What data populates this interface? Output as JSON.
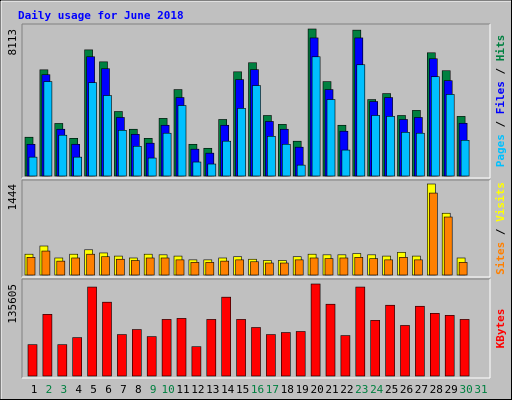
{
  "chart_data": [
    {
      "type": "bar",
      "title": "Daily usage for June 2018",
      "categories": [
        1,
        2,
        3,
        4,
        5,
        6,
        7,
        8,
        9,
        10,
        11,
        12,
        13,
        14,
        15,
        16,
        17,
        18,
        19,
        20,
        21,
        22,
        23,
        24,
        25,
        26,
        27,
        28,
        29,
        30,
        31
      ],
      "series": [
        {
          "name": "Hits",
          "color": "#008040",
          "values": [
            2140,
            5860,
            2900,
            2080,
            6960,
            6300,
            3560,
            2580,
            2080,
            3180,
            4770,
            1750,
            1530,
            3120,
            5750,
            6250,
            3340,
            2850,
            1920,
            8113,
            5210,
            2800,
            8050,
            4220,
            4550,
            3340,
            3620,
            6800,
            5810,
            3290,
            null
          ]
        },
        {
          "name": "Files",
          "color": "#0000ff",
          "values": [
            1750,
            5590,
            2580,
            1750,
            6580,
            5920,
            3230,
            2300,
            1810,
            2800,
            4330,
            1480,
            1260,
            2800,
            5320,
            5870,
            3010,
            2580,
            1590,
            7620,
            4770,
            2470,
            7620,
            4110,
            4330,
            3120,
            3230,
            6470,
            5260,
            2910,
            null
          ]
        },
        {
          "name": "Pages",
          "color": "#00c0ff",
          "values": [
            1040,
            5210,
            2250,
            1040,
            5150,
            4440,
            2520,
            1640,
            990,
            2360,
            3890,
            770,
            660,
            1920,
            3730,
            4990,
            2190,
            1750,
            600,
            6580,
            4220,
            1430,
            6140,
            3340,
            3290,
            2410,
            2360,
            5480,
            4500,
            1970,
            null
          ]
        }
      ],
      "ylim": [
        0,
        8113
      ],
      "yticks": [
        8113
      ],
      "legend_separator": " / "
    },
    {
      "type": "bar",
      "categories": [
        1,
        2,
        3,
        4,
        5,
        6,
        7,
        8,
        9,
        10,
        11,
        12,
        13,
        14,
        15,
        16,
        17,
        18,
        19,
        20,
        21,
        22,
        23,
        24,
        25,
        26,
        27,
        28,
        29,
        30,
        31
      ],
      "series": [
        {
          "name": "Visits",
          "color": "#ffff00",
          "values": [
            330,
            460,
            270,
            330,
            400,
            350,
            300,
            270,
            330,
            320,
            300,
            240,
            240,
            270,
            290,
            250,
            230,
            230,
            290,
            330,
            320,
            320,
            340,
            320,
            300,
            360,
            300,
            1444,
            980,
            270,
            null
          ]
        },
        {
          "name": "Sites",
          "color": "#ff8000",
          "values": [
            280,
            380,
            220,
            270,
            330,
            290,
            250,
            230,
            270,
            270,
            240,
            200,
            200,
            220,
            240,
            210,
            190,
            190,
            240,
            270,
            260,
            270,
            280,
            260,
            240,
            280,
            240,
            1300,
            920,
            200,
            null
          ]
        }
      ],
      "ylim": [
        0,
        1444
      ],
      "yticks": [
        1444
      ],
      "legend_separator": " / "
    },
    {
      "type": "bar",
      "categories": [
        1,
        2,
        3,
        4,
        5,
        6,
        7,
        8,
        9,
        10,
        11,
        12,
        13,
        14,
        15,
        16,
        17,
        18,
        19,
        20,
        21,
        22,
        23,
        24,
        25,
        26,
        27,
        28,
        29,
        30,
        31
      ],
      "category_colors": [
        "#000000",
        "#008040",
        "#008040",
        "#000000",
        "#000000",
        "#000000",
        "#000000",
        "#000000",
        "#008040",
        "#008040",
        "#000000",
        "#000000",
        "#000000",
        "#000000",
        "#000000",
        "#008040",
        "#008040",
        "#000000",
        "#000000",
        "#000000",
        "#000000",
        "#000000",
        "#008040",
        "#008040",
        "#000000",
        "#000000",
        "#000000",
        "#000000",
        "#000000",
        "#008040",
        "#008040"
      ],
      "series": [
        {
          "name": "KBytes",
          "color": "#ff0000",
          "values": [
            46200,
            90900,
            46200,
            56600,
            131100,
            108800,
            61100,
            68500,
            58100,
            83400,
            84900,
            43200,
            83400,
            116200,
            83400,
            71500,
            61100,
            64100,
            65600,
            135605,
            105800,
            59600,
            131100,
            82000,
            104300,
            74500,
            102800,
            92400,
            89400,
            83400,
            null
          ]
        }
      ],
      "ylim": [
        0,
        135605
      ],
      "yticks": [
        135605
      ]
    }
  ]
}
